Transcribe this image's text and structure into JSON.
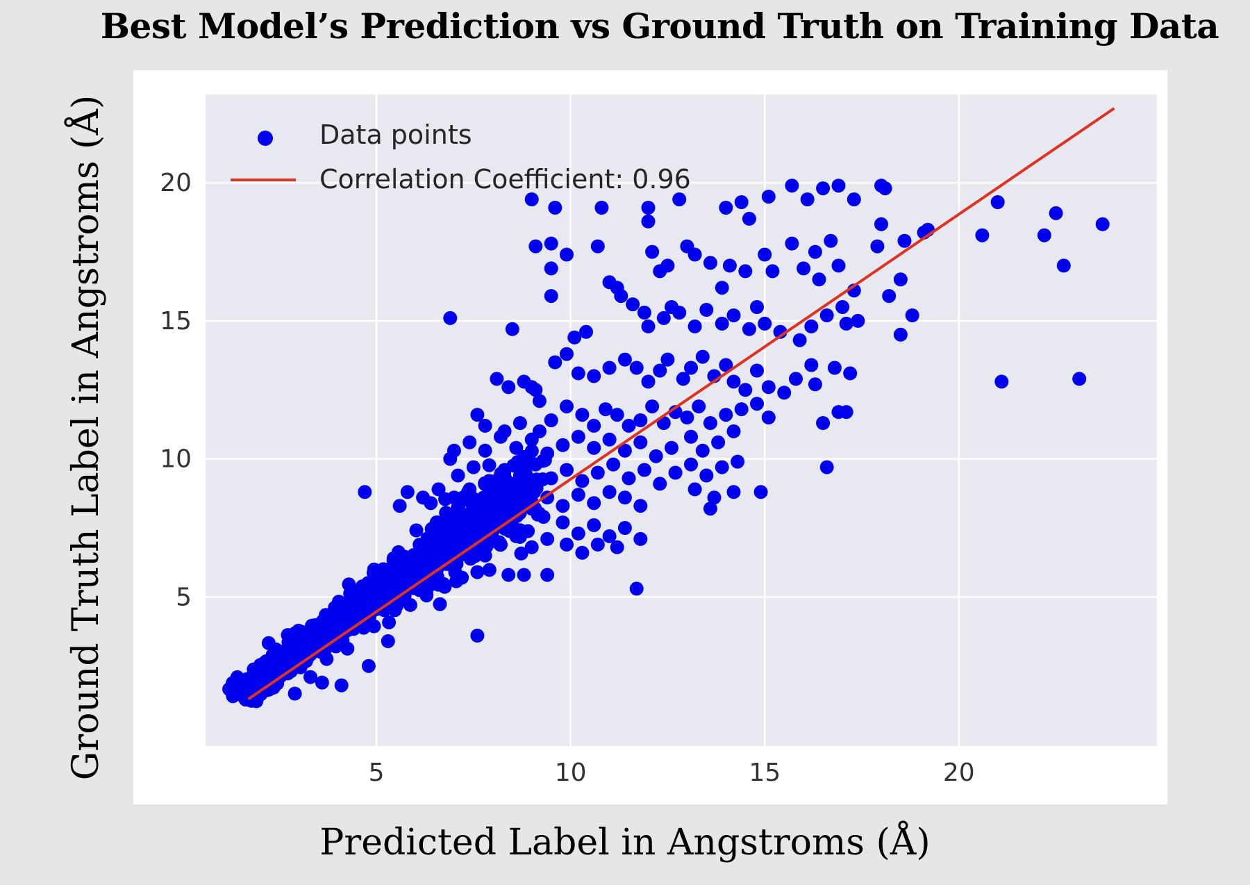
{
  "colors": {
    "page_background": "#e6e6e6",
    "card_background": "#ffffff",
    "plot_background": "#e8e8f0",
    "grid": "#ffffff",
    "points": "#0000ee",
    "fit_line": "#dd3322"
  },
  "chart_data": {
    "type": "scatter",
    "title": "Best Model’s Prediction vs Ground Truth on Training Data",
    "xlabel": "Predicted Label in Angstroms (Å)",
    "ylabel": "Ground Truth Label in Angstroms (Å)",
    "xlim": [
      0.6,
      25.1
    ],
    "ylim": [
      -0.4,
      23.2
    ],
    "x_ticks": [
      5,
      10,
      15,
      20
    ],
    "y_ticks": [
      5,
      10,
      15,
      20
    ],
    "grid": true,
    "legend_position": "top-left",
    "legend": [
      {
        "label": "Data points",
        "marker": "dot"
      },
      {
        "label": "Correlation Coefficient: 0.96",
        "marker": "line"
      }
    ],
    "fit_line": {
      "x": [
        1.7,
        24.0
      ],
      "y": [
        1.3,
        22.7
      ]
    },
    "dense_band": {
      "note": "points densely cluster along the fit line from ~1.5 to ~9 Å",
      "start": 1.6,
      "end": 9.0,
      "count": 1000
    },
    "points": [
      [
        9.0,
        19.4
      ],
      [
        9.6,
        19.1
      ],
      [
        10.8,
        19.1
      ],
      [
        12.0,
        19.1
      ],
      [
        12.0,
        18.6
      ],
      [
        12.8,
        19.4
      ],
      [
        14.0,
        19.1
      ],
      [
        14.4,
        19.3
      ],
      [
        14.6,
        18.7
      ],
      [
        15.1,
        19.5
      ],
      [
        15.7,
        19.9
      ],
      [
        16.1,
        19.4
      ],
      [
        16.5,
        19.8
      ],
      [
        16.9,
        19.9
      ],
      [
        17.3,
        19.4
      ],
      [
        18.0,
        19.9
      ],
      [
        18.1,
        19.8
      ],
      [
        18.0,
        18.5
      ],
      [
        19.2,
        18.3
      ],
      [
        21.0,
        19.3
      ],
      [
        20.6,
        18.1
      ],
      [
        22.2,
        18.1
      ],
      [
        22.5,
        18.9
      ],
      [
        22.7,
        17.0
      ],
      [
        23.7,
        18.5
      ],
      [
        21.1,
        12.8
      ],
      [
        23.1,
        12.9
      ],
      [
        9.1,
        17.7
      ],
      [
        9.5,
        17.8
      ],
      [
        9.9,
        17.4
      ],
      [
        10.7,
        17.7
      ],
      [
        11.0,
        16.4
      ],
      [
        11.2,
        16.2
      ],
      [
        11.3,
        15.9
      ],
      [
        12.1,
        17.5
      ],
      [
        12.3,
        16.8
      ],
      [
        12.5,
        17.0
      ],
      [
        13.0,
        17.7
      ],
      [
        13.2,
        17.4
      ],
      [
        13.6,
        17.1
      ],
      [
        13.9,
        16.2
      ],
      [
        14.1,
        17.0
      ],
      [
        14.5,
        16.8
      ],
      [
        15.0,
        17.4
      ],
      [
        15.2,
        16.8
      ],
      [
        15.7,
        17.8
      ],
      [
        16.0,
        16.9
      ],
      [
        16.3,
        17.5
      ],
      [
        16.4,
        16.5
      ],
      [
        16.7,
        17.9
      ],
      [
        16.9,
        17.0
      ],
      [
        17.3,
        16.1
      ],
      [
        17.9,
        17.7
      ],
      [
        18.5,
        16.5
      ],
      [
        18.6,
        17.9
      ],
      [
        19.1,
        18.2
      ],
      [
        9.5,
        16.9
      ],
      [
        9.5,
        15.9
      ],
      [
        6.9,
        15.1
      ],
      [
        8.5,
        14.7
      ],
      [
        18.5,
        14.5
      ],
      [
        18.8,
        15.2
      ],
      [
        18.2,
        15.9
      ],
      [
        10.1,
        14.4
      ],
      [
        10.4,
        14.6
      ],
      [
        11.6,
        15.6
      ],
      [
        11.9,
        15.3
      ],
      [
        12.0,
        14.8
      ],
      [
        12.4,
        15.1
      ],
      [
        12.6,
        15.5
      ],
      [
        12.8,
        15.3
      ],
      [
        13.2,
        14.8
      ],
      [
        13.5,
        15.4
      ],
      [
        13.9,
        14.9
      ],
      [
        14.2,
        15.2
      ],
      [
        14.6,
        14.7
      ],
      [
        14.8,
        15.5
      ],
      [
        15.0,
        14.9
      ],
      [
        15.4,
        14.6
      ],
      [
        15.9,
        14.3
      ],
      [
        16.2,
        14.8
      ],
      [
        16.6,
        15.2
      ],
      [
        17.0,
        15.5
      ],
      [
        17.1,
        14.9
      ],
      [
        17.4,
        15.0
      ],
      [
        16.8,
        13.3
      ],
      [
        17.2,
        13.1
      ],
      [
        16.3,
        12.7
      ],
      [
        8.1,
        12.9
      ],
      [
        8.4,
        12.6
      ],
      [
        8.8,
        12.8
      ],
      [
        9.1,
        12.5
      ],
      [
        9.6,
        13.5
      ],
      [
        9.9,
        13.8
      ],
      [
        10.2,
        13.1
      ],
      [
        10.6,
        13.0
      ],
      [
        11.0,
        13.3
      ],
      [
        11.4,
        13.6
      ],
      [
        11.7,
        13.3
      ],
      [
        12.0,
        12.8
      ],
      [
        12.3,
        13.2
      ],
      [
        12.5,
        13.6
      ],
      [
        12.9,
        12.9
      ],
      [
        13.1,
        13.3
      ],
      [
        13.4,
        13.7
      ],
      [
        13.7,
        13.0
      ],
      [
        14.0,
        13.4
      ],
      [
        14.2,
        12.8
      ],
      [
        14.5,
        12.5
      ],
      [
        14.8,
        13.2
      ],
      [
        15.1,
        12.6
      ],
      [
        15.5,
        12.4
      ],
      [
        15.8,
        12.9
      ],
      [
        16.2,
        13.4
      ],
      [
        16.5,
        11.3
      ],
      [
        17.1,
        11.7
      ],
      [
        16.9,
        11.7
      ],
      [
        16.6,
        9.7
      ],
      [
        9.0,
        12.6
      ],
      [
        9.2,
        12.1
      ],
      [
        7.6,
        11.6
      ],
      [
        7.8,
        11.2
      ],
      [
        8.3,
        11.0
      ],
      [
        8.7,
        11.3
      ],
      [
        9.2,
        11.0
      ],
      [
        9.5,
        11.4
      ],
      [
        9.9,
        11.9
      ],
      [
        10.3,
        11.6
      ],
      [
        10.6,
        11.2
      ],
      [
        10.9,
        11.8
      ],
      [
        11.2,
        11.6
      ],
      [
        11.5,
        11.2
      ],
      [
        11.8,
        11.4
      ],
      [
        12.1,
        11.9
      ],
      [
        12.4,
        11.3
      ],
      [
        12.7,
        11.7
      ],
      [
        13.0,
        11.5
      ],
      [
        13.3,
        11.9
      ],
      [
        13.6,
        11.3
      ],
      [
        14.0,
        11.6
      ],
      [
        14.4,
        11.8
      ],
      [
        14.8,
        12.0
      ],
      [
        15.1,
        11.5
      ],
      [
        14.2,
        11.0
      ],
      [
        13.8,
        10.6
      ],
      [
        13.4,
        10.3
      ],
      [
        13.1,
        10.8
      ],
      [
        12.6,
        10.4
      ],
      [
        12.2,
        10.1
      ],
      [
        11.8,
        10.6
      ],
      [
        11.4,
        10.3
      ],
      [
        11.0,
        10.7
      ],
      [
        10.6,
        10.4
      ],
      [
        10.2,
        10.8
      ],
      [
        9.8,
        10.5
      ],
      [
        9.4,
        10.2
      ],
      [
        9.0,
        10.7
      ],
      [
        8.6,
        10.4
      ],
      [
        8.2,
        10.8
      ],
      [
        7.8,
        10.3
      ],
      [
        7.4,
        10.6
      ],
      [
        7.0,
        10.3
      ],
      [
        6.9,
        10.0
      ],
      [
        7.1,
        9.4
      ],
      [
        7.5,
        9.7
      ],
      [
        7.9,
        9.2
      ],
      [
        8.3,
        9.6
      ],
      [
        8.7,
        9.4
      ],
      [
        9.1,
        9.8
      ],
      [
        9.5,
        9.3
      ],
      [
        9.9,
        9.6
      ],
      [
        10.3,
        9.2
      ],
      [
        10.7,
        9.5
      ],
      [
        11.1,
        9.8
      ],
      [
        11.5,
        9.3
      ],
      [
        11.9,
        9.6
      ],
      [
        12.3,
        9.1
      ],
      [
        12.7,
        9.5
      ],
      [
        13.1,
        9.8
      ],
      [
        13.5,
        9.4
      ],
      [
        13.9,
        9.7
      ],
      [
        14.3,
        9.9
      ],
      [
        13.2,
        8.9
      ],
      [
        13.7,
        8.6
      ],
      [
        14.2,
        8.8
      ],
      [
        13.6,
        8.2
      ],
      [
        11.8,
        8.3
      ],
      [
        11.4,
        8.6
      ],
      [
        11.0,
        8.8
      ],
      [
        10.6,
        8.4
      ],
      [
        10.2,
        8.7
      ],
      [
        9.8,
        8.3
      ],
      [
        9.4,
        8.6
      ],
      [
        9.0,
        8.2
      ],
      [
        8.6,
        8.5
      ],
      [
        8.2,
        8.9
      ],
      [
        7.8,
        8.6
      ],
      [
        7.4,
        8.9
      ],
      [
        7.0,
        8.6
      ],
      [
        6.6,
        8.9
      ],
      [
        6.2,
        8.6
      ],
      [
        5.8,
        8.8
      ],
      [
        4.7,
        8.8
      ],
      [
        5.6,
        8.3
      ],
      [
        6.4,
        8.4
      ],
      [
        14.9,
        8.8
      ],
      [
        9.8,
        7.7
      ],
      [
        10.2,
        7.3
      ],
      [
        10.6,
        7.6
      ],
      [
        11.0,
        7.2
      ],
      [
        11.4,
        7.5
      ],
      [
        11.8,
        7.1
      ],
      [
        11.2,
        6.8
      ],
      [
        10.7,
        6.9
      ],
      [
        10.3,
        6.6
      ],
      [
        9.9,
        6.9
      ],
      [
        9.4,
        7.1
      ],
      [
        9.0,
        6.8
      ],
      [
        8.6,
        7.2
      ],
      [
        8.2,
        6.9
      ],
      [
        7.8,
        6.5
      ],
      [
        7.4,
        6.7
      ],
      [
        7.0,
        6.4
      ],
      [
        6.6,
        6.1
      ],
      [
        6.2,
        5.9
      ],
      [
        8.4,
        5.8
      ],
      [
        7.6,
        5.9
      ],
      [
        8.8,
        5.8
      ],
      [
        9.4,
        5.8
      ],
      [
        7.2,
        5.7
      ],
      [
        6.5,
        5.8
      ],
      [
        5.9,
        5.5
      ],
      [
        6.1,
        5.3
      ],
      [
        11.7,
        5.3
      ],
      [
        7.6,
        3.6
      ],
      [
        5.3,
        3.4
      ],
      [
        4.8,
        2.5
      ],
      [
        3.6,
        1.9
      ],
      [
        4.1,
        1.8
      ],
      [
        2.9,
        1.5
      ],
      [
        3.3,
        2.1
      ]
    ]
  }
}
